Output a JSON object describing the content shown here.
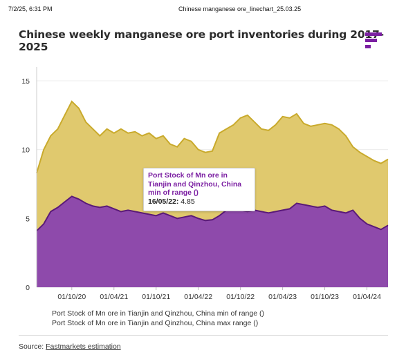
{
  "browser_header": {
    "datetime": "7/2/25, 6:31 PM",
    "page_title": "Chinese manganese ore_linechart_25.03.25"
  },
  "title": "Chinese weekly manganese ore port inventories during 2017-2025",
  "logo_icon": "fastmarkets-logo-icon",
  "colors": {
    "min_fill": "#8e4aab",
    "min_line": "#5a1a78",
    "max_fill": "#e0c96e",
    "max_line": "#c9aa2c",
    "brand": "#7b1fa2"
  },
  "legend": {
    "item1": "Port Stock of Mn ore in Tianjin and Qinzhou, China min of range ()",
    "item2": "Port Stock of Mn ore in Tianjin and Qinzhou, China max range ()"
  },
  "tooltip": {
    "series_name": "Port Stock of Mn ore in Tianjin and Qinzhou, China min of range ()",
    "date": "16/05/22:",
    "value": "4.85"
  },
  "source": {
    "label": "Source:",
    "link": "Fastmarkets estimation"
  },
  "chart_data": {
    "type": "area",
    "ylim": [
      0,
      15
    ],
    "yticks": [
      "0",
      "5",
      "10",
      "15"
    ],
    "xticks": [
      "01/10/20",
      "01/04/21",
      "01/10/21",
      "01/04/22",
      "01/10/22",
      "01/04/23",
      "01/10/23",
      "01/04/24"
    ],
    "x": [
      "2020-05",
      "2020-06",
      "2020-07",
      "2020-08",
      "2020-09",
      "2020-10",
      "2020-11",
      "2020-12",
      "2021-01",
      "2021-02",
      "2021-03",
      "2021-04",
      "2021-05",
      "2021-06",
      "2021-07",
      "2021-08",
      "2021-09",
      "2021-10",
      "2021-11",
      "2021-12",
      "2022-01",
      "2022-02",
      "2022-03",
      "2022-04",
      "2022-05",
      "2022-06",
      "2022-07",
      "2022-08",
      "2022-09",
      "2022-10",
      "2022-11",
      "2022-12",
      "2023-01",
      "2023-02",
      "2023-03",
      "2023-04",
      "2023-05",
      "2023-06",
      "2023-07",
      "2023-08",
      "2023-09",
      "2023-10",
      "2023-11",
      "2023-12",
      "2024-01",
      "2024-02",
      "2024-03",
      "2024-04",
      "2024-05",
      "2024-06",
      "2024-07"
    ],
    "series": [
      {
        "name": "Port Stock of Mn ore in Tianjin and Qinzhou, China min of range ()",
        "values": [
          4.1,
          4.6,
          5.5,
          5.8,
          6.2,
          6.6,
          6.4,
          6.1,
          5.9,
          5.8,
          5.9,
          5.7,
          5.5,
          5.6,
          5.5,
          5.4,
          5.3,
          5.2,
          5.4,
          5.2,
          5.0,
          5.1,
          5.2,
          5.0,
          4.85,
          4.9,
          5.2,
          5.6,
          5.7,
          5.6,
          5.5,
          5.6,
          5.5,
          5.4,
          5.5,
          5.6,
          5.7,
          6.1,
          6.0,
          5.9,
          5.8,
          5.9,
          5.6,
          5.5,
          5.4,
          5.6,
          5.0,
          4.6,
          4.4,
          4.2,
          4.5
        ]
      },
      {
        "name": "Port Stock of Mn ore in Tianjin and Qinzhou, China max range ()",
        "values": [
          8.3,
          10.0,
          11.0,
          11.5,
          12.5,
          13.5,
          13.0,
          12.0,
          11.5,
          11.0,
          11.5,
          11.2,
          11.5,
          11.2,
          11.3,
          11.0,
          11.2,
          10.8,
          11.0,
          10.4,
          10.2,
          10.8,
          10.6,
          10.0,
          9.8,
          9.9,
          11.2,
          11.5,
          11.8,
          12.3,
          12.5,
          12.0,
          11.5,
          11.4,
          11.8,
          12.4,
          12.3,
          12.6,
          11.9,
          11.7,
          11.8,
          11.9,
          11.8,
          11.5,
          11.0,
          10.2,
          9.8,
          9.5,
          9.2,
          9.0,
          9.3
        ]
      }
    ]
  }
}
